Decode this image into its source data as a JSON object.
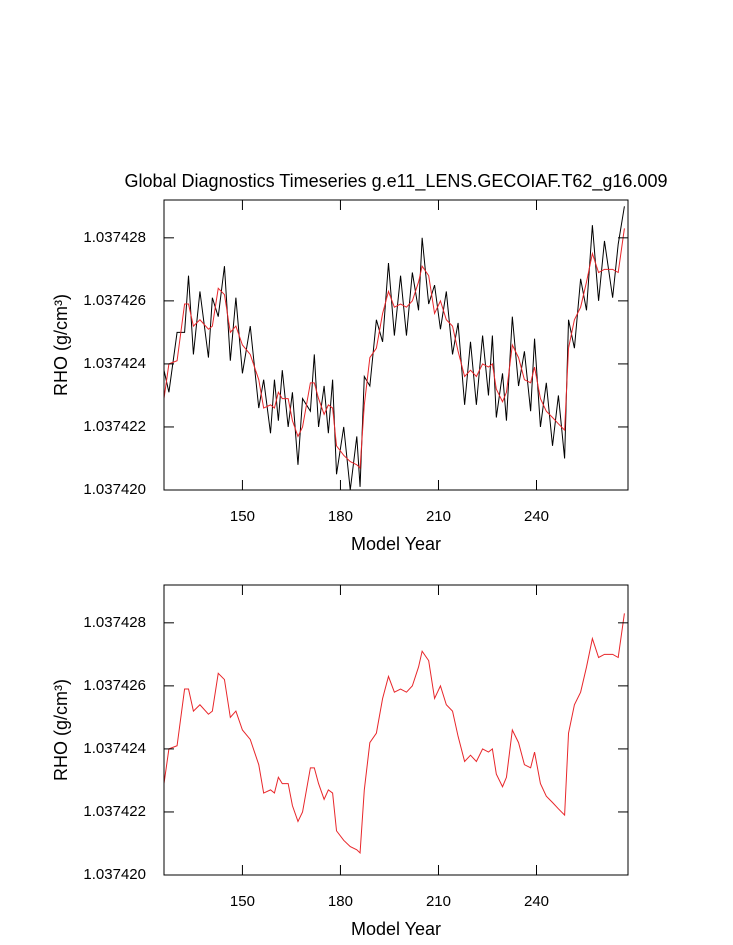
{
  "chart_data": [
    {
      "type": "line",
      "title": "Global Diagnostics Timeseries g.e11_LENS.GECOIAF.T62_g16.009",
      "xlabel": "Model Year",
      "ylabel": "RHO (g/cm³)",
      "xlim": [
        126,
        268
      ],
      "ylim": [
        1.03742,
        1.0374292
      ],
      "xticks": [
        150,
        180,
        210,
        240
      ],
      "yticks": [
        {
          "value": 1.03742,
          "label": "1.037420"
        },
        1.037422,
        1.037424,
        1.037426,
        1.037428
      ],
      "series": [
        {
          "color": "#000000",
          "x": [
            126,
            127.5,
            130,
            132.3,
            133.5,
            135,
            137,
            139.6,
            140.8,
            142.6,
            144.5,
            146.3,
            148,
            150,
            152.4,
            155,
            156.5,
            158.6,
            159.8,
            161,
            162.2,
            164,
            165.3,
            167,
            168.4,
            170.8,
            172,
            173.3,
            175,
            176.3,
            177.6,
            178.8,
            181,
            183,
            185,
            186,
            187.3,
            189,
            191,
            192.9,
            194.7,
            196.5,
            198.4,
            200.2,
            202,
            203.9,
            205,
            207,
            208.8,
            210.6,
            212.4,
            214.3,
            216,
            218,
            219.8,
            221.6,
            223.5,
            225.3,
            226.5,
            227.7,
            229.6,
            230.8,
            232.6,
            234.5,
            236.3,
            238.2,
            239.4,
            241.2,
            243,
            244.9,
            246.7,
            248.6,
            249.8,
            251.6,
            253.5,
            255.3,
            257.1,
            259,
            260.8,
            263.3,
            265,
            266.9
          ],
          "values": [
            1.0374238,
            1.0374231,
            1.037425,
            1.037425,
            1.0374268,
            1.0374243,
            1.0374263,
            1.0374242,
            1.0374261,
            1.0374255,
            1.0374271,
            1.0374241,
            1.0374261,
            1.0374237,
            1.0374252,
            1.0374226,
            1.0374235,
            1.0374218,
            1.0374235,
            1.0374222,
            1.0374238,
            1.037422,
            1.0374231,
            1.0374208,
            1.0374229,
            1.0374225,
            1.0374243,
            1.037422,
            1.0374233,
            1.0374218,
            1.0374235,
            1.0374205,
            1.037422,
            1.03742,
            1.0374217,
            1.0374201,
            1.0374236,
            1.0374233,
            1.0374254,
            1.0374247,
            1.0374272,
            1.0374249,
            1.0374268,
            1.0374249,
            1.0374269,
            1.0374257,
            1.037428,
            1.0374259,
            1.0374265,
            1.0374251,
            1.0374263,
            1.0374243,
            1.0374253,
            1.0374227,
            1.0374247,
            1.0374227,
            1.0374249,
            1.037423,
            1.0374249,
            1.0374223,
            1.0374237,
            1.0374222,
            1.0374255,
            1.0374233,
            1.0374244,
            1.0374225,
            1.0374248,
            1.037422,
            1.0374234,
            1.0374214,
            1.037423,
            1.037421,
            1.0374254,
            1.0374245,
            1.0374267,
            1.0374257,
            1.0374284,
            1.037426,
            1.0374279,
            1.0374261,
            1.0374278,
            1.037429
          ]
        },
        {
          "color": "#e8262a",
          "x": [
            126,
            127.5,
            130,
            132.3,
            133.5,
            135,
            137,
            139.6,
            140.8,
            142.6,
            144.5,
            146.3,
            148,
            150,
            152.4,
            155,
            156.5,
            158.6,
            159.8,
            161,
            162.2,
            164,
            165.3,
            167,
            168.4,
            170.8,
            172,
            173.3,
            175,
            176.3,
            177.6,
            178.8,
            181,
            183,
            185,
            186,
            187.3,
            189,
            191,
            192.9,
            194.7,
            196.5,
            198.4,
            200.2,
            202,
            203.9,
            205,
            207,
            208.8,
            210.6,
            212.4,
            214.3,
            216,
            218,
            219.8,
            221.6,
            223.5,
            225.3,
            226.5,
            227.7,
            229.6,
            230.8,
            232.6,
            234.5,
            236.3,
            238.2,
            239.4,
            241.2,
            243,
            244.9,
            246.7,
            248.6,
            249.8,
            251.6,
            253.5,
            255.3,
            257.1,
            259,
            260.8,
            263.3,
            265,
            266.9
          ],
          "values": [
            1.0374229,
            1.037424,
            1.0374241,
            1.0374259,
            1.0374259,
            1.0374252,
            1.0374254,
            1.0374251,
            1.0374252,
            1.0374264,
            1.0374262,
            1.037425,
            1.0374252,
            1.0374246,
            1.0374243,
            1.0374235,
            1.0374226,
            1.0374227,
            1.0374226,
            1.0374231,
            1.0374229,
            1.0374229,
            1.0374222,
            1.0374217,
            1.037422,
            1.0374234,
            1.0374234,
            1.0374229,
            1.0374224,
            1.0374227,
            1.0374226,
            1.0374214,
            1.0374211,
            1.0374209,
            1.0374208,
            1.0374207,
            1.0374227,
            1.0374242,
            1.0374245,
            1.0374256,
            1.0374263,
            1.0374258,
            1.0374259,
            1.0374258,
            1.037426,
            1.0374266,
            1.0374271,
            1.0374268,
            1.0374256,
            1.037426,
            1.0374254,
            1.0374252,
            1.0374244,
            1.0374236,
            1.0374238,
            1.0374236,
            1.037424,
            1.0374239,
            1.037424,
            1.0374232,
            1.0374228,
            1.0374231,
            1.0374246,
            1.0374242,
            1.0374235,
            1.0374234,
            1.0374239,
            1.0374229,
            1.0374225,
            1.0374223,
            1.0374221,
            1.0374219,
            1.0374245,
            1.0374254,
            1.0374258,
            1.0374266,
            1.0374275,
            1.0374269,
            1.037427,
            1.037427,
            1.0374269,
            1.0374283
          ]
        }
      ]
    },
    {
      "type": "line",
      "xlabel": "Model Year",
      "ylabel": "RHO (g/cm³)",
      "xlim": [
        126,
        268
      ],
      "ylim": [
        1.03742,
        1.0374292
      ],
      "xticks": [
        150,
        180,
        210,
        240
      ],
      "yticks": [
        {
          "value": 1.03742,
          "label": "1.037420"
        },
        1.037422,
        1.037424,
        1.037426,
        1.037428
      ],
      "series": [
        {
          "color": "#e8262a",
          "x": [
            126,
            127.5,
            130,
            132.3,
            133.5,
            135,
            137,
            139.6,
            140.8,
            142.6,
            144.5,
            146.3,
            148,
            150,
            152.4,
            155,
            156.5,
            158.6,
            159.8,
            161,
            162.2,
            164,
            165.3,
            167,
            168.4,
            170.8,
            172,
            173.3,
            175,
            176.3,
            177.6,
            178.8,
            181,
            183,
            185,
            186,
            187.3,
            189,
            191,
            192.9,
            194.7,
            196.5,
            198.4,
            200.2,
            202,
            203.9,
            205,
            207,
            208.8,
            210.6,
            212.4,
            214.3,
            216,
            218,
            219.8,
            221.6,
            223.5,
            225.3,
            226.5,
            227.7,
            229.6,
            230.8,
            232.6,
            234.5,
            236.3,
            238.2,
            239.4,
            241.2,
            243,
            244.9,
            246.7,
            248.6,
            249.8,
            251.6,
            253.5,
            255.3,
            257.1,
            259,
            260.8,
            263.3,
            265,
            266.9
          ],
          "values": [
            1.0374229,
            1.037424,
            1.0374241,
            1.0374259,
            1.0374259,
            1.0374252,
            1.0374254,
            1.0374251,
            1.0374252,
            1.0374264,
            1.0374262,
            1.037425,
            1.0374252,
            1.0374246,
            1.0374243,
            1.0374235,
            1.0374226,
            1.0374227,
            1.0374226,
            1.0374231,
            1.0374229,
            1.0374229,
            1.0374222,
            1.0374217,
            1.037422,
            1.0374234,
            1.0374234,
            1.0374229,
            1.0374224,
            1.0374227,
            1.0374226,
            1.0374214,
            1.0374211,
            1.0374209,
            1.0374208,
            1.0374207,
            1.0374227,
            1.0374242,
            1.0374245,
            1.0374256,
            1.0374263,
            1.0374258,
            1.0374259,
            1.0374258,
            1.037426,
            1.0374266,
            1.0374271,
            1.0374268,
            1.0374256,
            1.037426,
            1.0374254,
            1.0374252,
            1.0374244,
            1.0374236,
            1.0374238,
            1.0374236,
            1.037424,
            1.0374239,
            1.037424,
            1.0374232,
            1.0374228,
            1.0374231,
            1.0374246,
            1.0374242,
            1.0374235,
            1.0374234,
            1.0374239,
            1.0374229,
            1.0374225,
            1.0374223,
            1.0374221,
            1.0374219,
            1.0374245,
            1.0374254,
            1.0374258,
            1.0374266,
            1.0374275,
            1.0374269,
            1.037427,
            1.037427,
            1.0374269,
            1.0374283
          ]
        }
      ]
    }
  ]
}
